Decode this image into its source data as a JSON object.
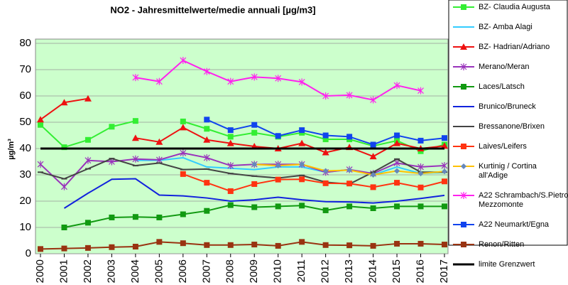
{
  "chart_data": {
    "type": "line",
    "title": "NO2 - Jahresmittelwerte/medie annuali [µg/m3]",
    "y_label": "µg/m³",
    "x": [
      2000,
      2001,
      2002,
      2003,
      2004,
      2005,
      2006,
      2007,
      2008,
      2009,
      2010,
      2011,
      2012,
      2013,
      2014,
      2015,
      2016,
      2017
    ],
    "xlim": [
      2000,
      2017
    ],
    "xticks": [
      2000,
      2001,
      2002,
      2003,
      2004,
      2005,
      2006,
      2007,
      2008,
      2009,
      2010,
      2011,
      2012,
      2013,
      2014,
      2015,
      2016,
      2017
    ],
    "ylim": [
      0,
      80
    ],
    "yticks": [
      0,
      10,
      20,
      30,
      40,
      50,
      60,
      70,
      80
    ],
    "grid": true,
    "legend": "right",
    "series": [
      {
        "name": "BZ- Claudia Augusta",
        "color": "#33ee33",
        "marker": "square",
        "values": [
          49,
          40.5,
          43.3,
          48.3,
          50.5,
          null,
          50.3,
          47.5,
          44.5,
          46,
          44.5,
          46,
          43.5,
          43.5,
          41,
          43,
          39,
          41.5
        ]
      },
      {
        "name": "BZ- Amba Alagi",
        "color": "#33ccff",
        "marker": "none",
        "values": [
          null,
          null,
          null,
          null,
          35.5,
          35.5,
          36.5,
          33,
          32.5,
          32,
          33,
          33,
          31,
          32,
          30,
          33,
          30.5,
          31
        ]
      },
      {
        "name": "BZ- Hadrian/Adriano",
        "color": "#ee1111",
        "marker": "triangle",
        "values": [
          51,
          57.5,
          59,
          null,
          44,
          42.5,
          48,
          43.3,
          42,
          40.8,
          40,
          42,
          38.5,
          40.5,
          37,
          42,
          40,
          41
        ]
      },
      {
        "name": "Merano/Meran",
        "color": "#9933bb",
        "marker": "star",
        "values": [
          34,
          25.5,
          35.5,
          35,
          36,
          35.7,
          38.3,
          36.5,
          33.5,
          34,
          34,
          34,
          31,
          32,
          30.5,
          34.5,
          33,
          33.5
        ]
      },
      {
        "name": "Laces/Latsch",
        "color": "#119911",
        "marker": "square",
        "values": [
          null,
          10,
          11.8,
          13.8,
          14,
          13.8,
          15,
          16.3,
          18.5,
          17.7,
          18,
          18.3,
          16.5,
          18,
          17.3,
          18,
          18,
          18
        ]
      },
      {
        "name": "Brunico/Bruneck",
        "color": "#1122dd",
        "marker": "none",
        "values": [
          null,
          17.3,
          23,
          28.3,
          28.5,
          22.3,
          22,
          21.2,
          20,
          20.5,
          21.5,
          20.5,
          19.8,
          19.7,
          19.3,
          20,
          21,
          22.2
        ]
      },
      {
        "name": "Bressanone/Brixen",
        "color": "#444444",
        "marker": "dash",
        "values": [
          31,
          28.5,
          32.3,
          36.2,
          33.5,
          34.5,
          32,
          32.2,
          30.5,
          29.5,
          28.8,
          29.8,
          27.2,
          26.5,
          31,
          36,
          31,
          31
        ]
      },
      {
        "name": "Laives/Leifers",
        "color": "#ff3311",
        "marker": "square",
        "values": [
          null,
          null,
          null,
          null,
          null,
          null,
          30.3,
          27,
          23.8,
          26.5,
          28.2,
          28.3,
          26.8,
          26.7,
          25.3,
          27,
          25.2,
          27.5
        ]
      },
      {
        "name": "Kurtinig / Cortina all'Adige",
        "color": "#ffc000",
        "marker": "diamond",
        "values": [
          null,
          null,
          null,
          null,
          null,
          null,
          null,
          null,
          null,
          34,
          33.5,
          34,
          31.5,
          31.8,
          30,
          31.5,
          30.5,
          31.3
        ]
      },
      {
        "name": "A22 Schrambach/S.Pietro Mezzomonte",
        "color": "#ff22ee",
        "marker": "star",
        "values": [
          null,
          null,
          null,
          null,
          67,
          65.5,
          73.5,
          69.3,
          65.5,
          67.2,
          66.7,
          65.3,
          60,
          60.3,
          58.5,
          64,
          62,
          null
        ]
      },
      {
        "name": "A22 Neumarkt/Egna",
        "color": "#1144ee",
        "marker": "square",
        "values": [
          null,
          null,
          null,
          null,
          null,
          null,
          null,
          51,
          47,
          49,
          44.8,
          47,
          45,
          44.5,
          41.5,
          45,
          43,
          44
        ]
      },
      {
        "name": "Renon/Ritten",
        "color": "#993311",
        "marker": "square",
        "values": [
          1.8,
          2,
          2.2,
          2.5,
          2.7,
          4.5,
          4,
          3.3,
          3.3,
          3.5,
          3,
          4.5,
          3.3,
          3.2,
          3,
          3.8,
          3.8,
          3.5
        ]
      },
      {
        "name": "limite Grenzwert",
        "color": "#000000",
        "marker": "none",
        "width": 3,
        "values": [
          40,
          40,
          40,
          40,
          40,
          40,
          40,
          40,
          40,
          40,
          40,
          40,
          40,
          40,
          40,
          40,
          40,
          40
        ]
      }
    ]
  }
}
